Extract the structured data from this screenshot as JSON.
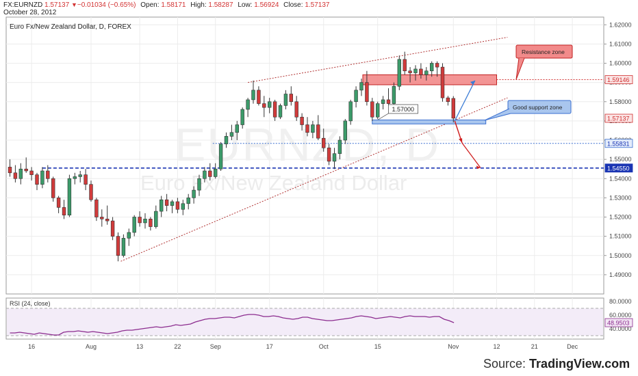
{
  "header": {
    "symbol": "FX:EURNZD",
    "last": "1.57137",
    "change": "−0.01034 (−0.65%)",
    "open_label": "Open:",
    "open": "1.58171",
    "high_label": "High:",
    "high": "1.58287",
    "low_label": "Low:",
    "low": "1.56924",
    "close_label": "Close:",
    "close": "1.57137",
    "date": "October 28, 2012"
  },
  "chart_title": "Euro Fx/New Zealand Dollar, D, FOREX",
  "watermark": {
    "symbol": "EURNZD, D",
    "name": "Euro Fx/New Zealand Dollar"
  },
  "annotations": {
    "resistance_label": "Resistance zone",
    "support_label": "Good support zone",
    "point_label": "1.57000"
  },
  "price_badges": [
    "1.59146",
    "1.57137",
    "1.55831",
    "1.54550"
  ],
  "rsi": {
    "label": "RSI (24, close)",
    "axis": [
      "80.0000",
      "60.0000",
      "40.0000"
    ],
    "value_badge": "48.9503",
    "upper": 70,
    "lower": 30,
    "range": [
      25,
      85
    ],
    "values": [
      34,
      34,
      35,
      34,
      33,
      32,
      34,
      33,
      32,
      31,
      31,
      35,
      36,
      36,
      37,
      36,
      35,
      36,
      35,
      34,
      33,
      34,
      35,
      37,
      38,
      38,
      39,
      40,
      41,
      42,
      43,
      42,
      43,
      44,
      46,
      45,
      46,
      47,
      50,
      52,
      54,
      55,
      55,
      56,
      57,
      57,
      56,
      58,
      60,
      61,
      61,
      60,
      58,
      58,
      59,
      58,
      56,
      55,
      54,
      55,
      57,
      57,
      55,
      54,
      53,
      52,
      52,
      53,
      54,
      55,
      56,
      58,
      59,
      58,
      57,
      55,
      56,
      57,
      58,
      57,
      56,
      58,
      59,
      58,
      58,
      58,
      57,
      58,
      58,
      54,
      52,
      49
    ]
  },
  "colors": {
    "up": "#3c9b6a",
    "down": "#d03b3b",
    "accent_blue": "#1a35b3",
    "resistance": "#e05a5a",
    "support": "#5b8fd6",
    "rsi_line": "#8b2b8e"
  },
  "source_prefix": "Source: ",
  "source_brand": "TradingView.com",
  "chart_data": {
    "type": "candlestick",
    "title": "Euro Fx/New Zealand Dollar, D, FOREX",
    "y_axis_ticks": [
      "1.62000",
      "1.61000",
      "1.60000",
      "1.59000",
      "1.58000",
      "1.57000",
      "1.56000",
      "1.55000",
      "1.54000",
      "1.53000",
      "1.52000",
      "1.51000",
      "1.50000",
      "1.49000"
    ],
    "ylim": [
      1.48,
      1.624
    ],
    "x_axis_ticks": [
      {
        "label": "16",
        "bar": 4
      },
      {
        "label": "Aug",
        "bar": 15
      },
      {
        "label": "13",
        "bar": 24
      },
      {
        "label": "22",
        "bar": 31
      },
      {
        "label": "Sep",
        "bar": 38
      },
      {
        "label": "17",
        "bar": 48
      },
      {
        "label": "Oct",
        "bar": 58
      },
      {
        "label": "15",
        "bar": 68
      },
      {
        "label": "Nov",
        "bar": 82
      },
      {
        "label": "12",
        "bar": 90
      },
      {
        "label": "21",
        "bar": 97
      },
      {
        "label": "Dec",
        "bar": 104
      }
    ],
    "x_range_bars": [
      0,
      108
    ],
    "ohlc": [
      [
        1.546,
        1.55,
        1.541,
        1.543
      ],
      [
        1.543,
        1.547,
        1.538,
        1.54
      ],
      [
        1.54,
        1.548,
        1.537,
        1.545
      ],
      [
        1.545,
        1.551,
        1.543,
        1.544
      ],
      [
        1.544,
        1.546,
        1.539,
        1.542
      ],
      [
        1.542,
        1.543,
        1.534,
        1.537
      ],
      [
        1.537,
        1.546,
        1.535,
        1.544
      ],
      [
        1.544,
        1.547,
        1.538,
        1.54
      ],
      [
        1.54,
        1.541,
        1.528,
        1.53
      ],
      [
        1.53,
        1.531,
        1.522,
        1.525
      ],
      [
        1.525,
        1.529,
        1.519,
        1.521
      ],
      [
        1.521,
        1.542,
        1.52,
        1.54
      ],
      [
        1.54,
        1.543,
        1.537,
        1.541
      ],
      [
        1.541,
        1.544,
        1.538,
        1.542
      ],
      [
        1.542,
        1.545,
        1.534,
        1.537
      ],
      [
        1.537,
        1.539,
        1.528,
        1.529
      ],
      [
        1.529,
        1.53,
        1.518,
        1.52
      ],
      [
        1.52,
        1.524,
        1.515,
        1.519
      ],
      [
        1.519,
        1.526,
        1.516,
        1.518
      ],
      [
        1.518,
        1.52,
        1.508,
        1.51
      ],
      [
        1.51,
        1.512,
        1.497,
        1.5
      ],
      [
        1.5,
        1.511,
        1.499,
        1.509
      ],
      [
        1.509,
        1.514,
        1.505,
        1.512
      ],
      [
        1.512,
        1.521,
        1.51,
        1.52
      ],
      [
        1.52,
        1.523,
        1.515,
        1.517
      ],
      [
        1.517,
        1.522,
        1.514,
        1.519
      ],
      [
        1.519,
        1.52,
        1.513,
        1.515
      ],
      [
        1.515,
        1.526,
        1.514,
        1.523
      ],
      [
        1.523,
        1.531,
        1.52,
        1.529
      ],
      [
        1.529,
        1.532,
        1.523,
        1.526
      ],
      [
        1.526,
        1.529,
        1.522,
        1.528
      ],
      [
        1.528,
        1.53,
        1.522,
        1.524
      ],
      [
        1.524,
        1.529,
        1.521,
        1.527
      ],
      [
        1.527,
        1.532,
        1.524,
        1.53
      ],
      [
        1.53,
        1.536,
        1.527,
        1.534
      ],
      [
        1.534,
        1.542,
        1.531,
        1.54
      ],
      [
        1.54,
        1.546,
        1.538,
        1.544
      ],
      [
        1.544,
        1.548,
        1.539,
        1.541
      ],
      [
        1.541,
        1.548,
        1.54,
        1.545
      ],
      [
        1.545,
        1.559,
        1.544,
        1.558
      ],
      [
        1.558,
        1.564,
        1.556,
        1.562
      ],
      [
        1.562,
        1.568,
        1.56,
        1.564
      ],
      [
        1.564,
        1.57,
        1.56,
        1.568
      ],
      [
        1.568,
        1.577,
        1.566,
        1.576
      ],
      [
        1.576,
        1.582,
        1.572,
        1.581
      ],
      [
        1.581,
        1.591,
        1.579,
        1.586
      ],
      [
        1.586,
        1.588,
        1.578,
        1.579
      ],
      [
        1.579,
        1.583,
        1.572,
        1.577
      ],
      [
        1.577,
        1.582,
        1.574,
        1.58
      ],
      [
        1.58,
        1.581,
        1.57,
        1.572
      ],
      [
        1.572,
        1.579,
        1.571,
        1.578
      ],
      [
        1.578,
        1.586,
        1.576,
        1.584
      ],
      [
        1.584,
        1.588,
        1.578,
        1.58
      ],
      [
        1.58,
        1.583,
        1.57,
        1.572
      ],
      [
        1.572,
        1.574,
        1.565,
        1.568
      ],
      [
        1.568,
        1.572,
        1.562,
        1.564
      ],
      [
        1.564,
        1.57,
        1.561,
        1.568
      ],
      [
        1.568,
        1.573,
        1.56,
        1.561
      ],
      [
        1.561,
        1.566,
        1.554,
        1.556
      ],
      [
        1.556,
        1.558,
        1.547,
        1.549
      ],
      [
        1.549,
        1.556,
        1.545,
        1.553
      ],
      [
        1.553,
        1.562,
        1.55,
        1.56
      ],
      [
        1.56,
        1.571,
        1.558,
        1.57
      ],
      [
        1.57,
        1.581,
        1.568,
        1.58
      ],
      [
        1.58,
        1.588,
        1.577,
        1.586
      ],
      [
        1.586,
        1.592,
        1.583,
        1.59
      ],
      [
        1.59,
        1.596,
        1.578,
        1.58
      ],
      [
        1.58,
        1.582,
        1.57,
        1.572
      ],
      [
        1.572,
        1.58,
        1.571,
        1.579
      ],
      [
        1.579,
        1.583,
        1.576,
        1.581
      ],
      [
        1.581,
        1.587,
        1.578,
        1.579
      ],
      [
        1.579,
        1.59,
        1.578,
        1.588
      ],
      [
        1.588,
        1.604,
        1.586,
        1.602
      ],
      [
        1.602,
        1.606,
        1.594,
        1.596
      ],
      [
        1.596,
        1.598,
        1.59,
        1.595
      ],
      [
        1.595,
        1.599,
        1.591,
        1.597
      ],
      [
        1.597,
        1.6,
        1.592,
        1.594
      ],
      [
        1.594,
        1.598,
        1.591,
        1.596
      ],
      [
        1.596,
        1.601,
        1.593,
        1.6
      ],
      [
        1.6,
        1.601,
        1.593,
        1.598
      ],
      [
        1.598,
        1.6,
        1.58,
        1.582
      ],
      [
        1.582,
        1.583,
        1.578,
        1.58
      ],
      [
        1.5817,
        1.5829,
        1.5692,
        1.5714
      ]
    ]
  }
}
